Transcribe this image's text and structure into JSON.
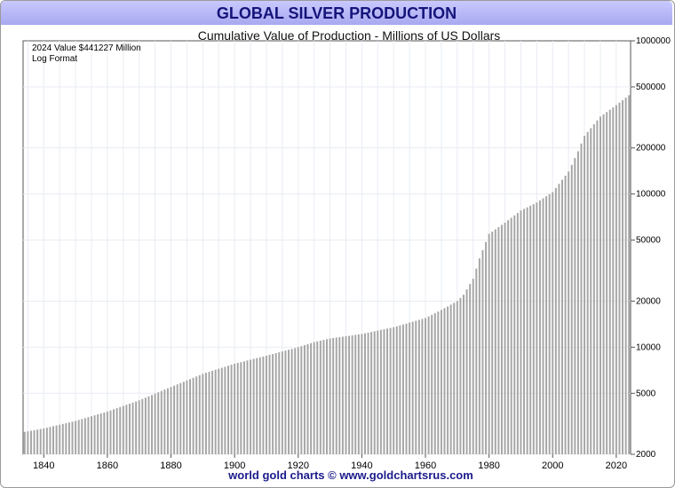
{
  "banner_title": "GLOBAL SILVER PRODUCTION",
  "footer_credit": "world gold charts © www.goldchartsrus.com",
  "colors": {
    "bar": "#a6a6a6",
    "grid": "#e8ecf3",
    "banner": "#b8b8f8",
    "title_text": "#14147a",
    "footer_text": "#1a1a8c"
  },
  "chart_data": {
    "type": "bar",
    "title": "Cumulative Value of Production - Millions of US Dollars",
    "annotations": [
      "2024  Value  $441227 Million",
      "Log Format"
    ],
    "y_scale": "log",
    "ylim": [
      2000,
      1000000
    ],
    "y_ticks": [
      1000000,
      500000,
      200000,
      100000,
      50000,
      20000,
      10000,
      5000,
      2000
    ],
    "y_tick_labels": [
      "1000000",
      "500000",
      "200000",
      "100000",
      "50000",
      "20000",
      "10000",
      "5000",
      "2000"
    ],
    "xlim": [
      1834,
      2024
    ],
    "x_ticks": [
      1840,
      1860,
      1880,
      1900,
      1920,
      1940,
      1960,
      1980,
      2000,
      2020
    ],
    "x_tick_labels": [
      "1840",
      "1860",
      "1880",
      "1900",
      "1920",
      "1940",
      "1960",
      "1980",
      "2000",
      "2020"
    ],
    "grid": true,
    "anchors": [
      [
        1834,
        2800
      ],
      [
        1840,
        2950
      ],
      [
        1850,
        3300
      ],
      [
        1860,
        3800
      ],
      [
        1870,
        4500
      ],
      [
        1880,
        5500
      ],
      [
        1890,
        6700
      ],
      [
        1900,
        7800
      ],
      [
        1910,
        8800
      ],
      [
        1920,
        10000
      ],
      [
        1925,
        10800
      ],
      [
        1930,
        11400
      ],
      [
        1940,
        12200
      ],
      [
        1950,
        13500
      ],
      [
        1960,
        15500
      ],
      [
        1965,
        17500
      ],
      [
        1970,
        20000
      ],
      [
        1972,
        22000
      ],
      [
        1975,
        28000
      ],
      [
        1977,
        38000
      ],
      [
        1980,
        55000
      ],
      [
        1985,
        65000
      ],
      [
        1990,
        78000
      ],
      [
        1995,
        88000
      ],
      [
        2000,
        103000
      ],
      [
        2005,
        140000
      ],
      [
        2008,
        190000
      ],
      [
        2010,
        240000
      ],
      [
        2015,
        320000
      ],
      [
        2020,
        380000
      ],
      [
        2024,
        441227
      ]
    ]
  }
}
